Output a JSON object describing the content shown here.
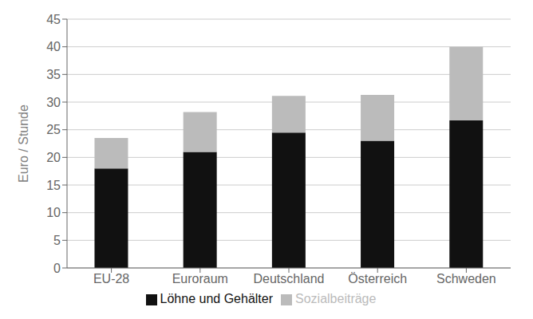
{
  "chart_data": {
    "type": "bar",
    "stacked": true,
    "categories": [
      "EU-28",
      "Euroraum",
      "Deutschland",
      "Österreich",
      "Schweden"
    ],
    "series": [
      {
        "name": "Löhne und Gehälter",
        "color": "#111111",
        "values": [
          18.0,
          21.0,
          24.5,
          23.0,
          26.7
        ]
      },
      {
        "name": "Sozialbeiträge",
        "color": "#bbbbbb",
        "values": [
          5.5,
          7.2,
          6.6,
          8.3,
          13.3
        ]
      }
    ],
    "ylabel": "Euro / Stunde",
    "ylim": [
      0,
      45
    ],
    "yticks": [
      0,
      5,
      10,
      15,
      20,
      25,
      30,
      35,
      40,
      45
    ],
    "grid": true,
    "legend": "bottom"
  }
}
